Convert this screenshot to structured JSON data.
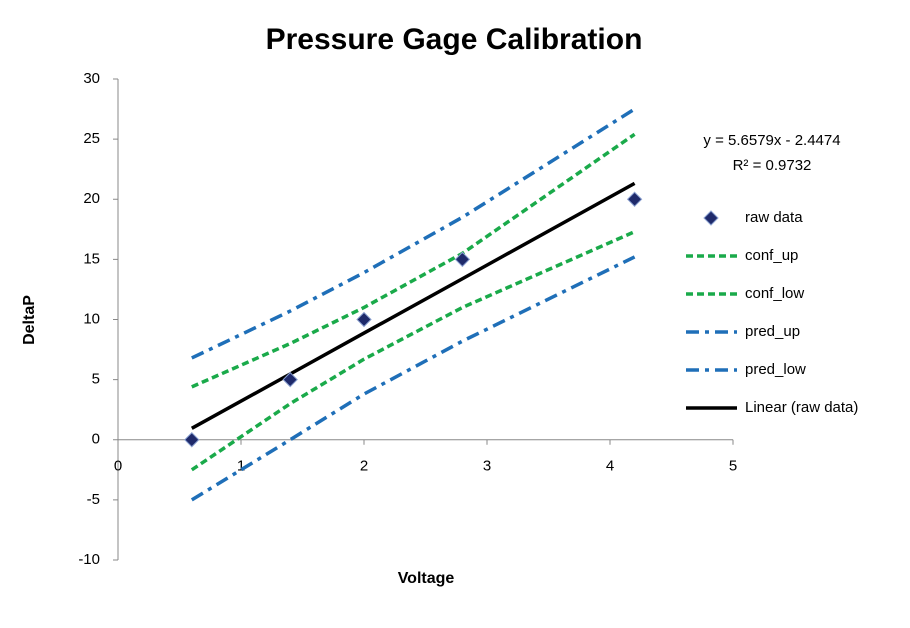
{
  "chart_data": {
    "type": "line",
    "title": "Pressure Gage Calibration",
    "x_label": "Voltage",
    "y_label": "DeltaP",
    "x": [
      0.6,
      1.4,
      2.0,
      2.8,
      4.2
    ],
    "series": [
      {
        "name": "raw data",
        "color": "#1f2a6b",
        "marker": "diamond",
        "values": [
          0,
          5,
          10,
          15,
          20
        ]
      },
      {
        "name": "conf_up",
        "color": "#1aaa4a",
        "dash": "dash",
        "values": [
          4.4,
          8.0,
          11.0,
          15.5,
          25.4
        ]
      },
      {
        "name": "conf_low",
        "color": "#1aaa4a",
        "dash": "dash",
        "values": [
          -2.5,
          3.0,
          6.7,
          11.0,
          17.3
        ]
      },
      {
        "name": "pred_up",
        "color": "#1f6fb8",
        "dash": "dashdot",
        "values": [
          6.8,
          10.7,
          13.9,
          18.5,
          27.5
        ]
      },
      {
        "name": "pred_low",
        "color": "#1f6fb8",
        "dash": "dashdot",
        "values": [
          -5.0,
          0.0,
          3.8,
          8.2,
          15.2
        ]
      },
      {
        "name": "Linear (raw data)",
        "color": "#000000",
        "dash": "solid",
        "values": [
          0.95,
          5.47,
          8.87,
          13.39,
          21.32
        ]
      }
    ],
    "annotations": [
      "y = 5.6579x - 2.4474",
      "R² = 0.9732"
    ],
    "xlim": [
      0,
      5
    ],
    "xticks": [
      0,
      1,
      2,
      3,
      4,
      5
    ],
    "ylim": [
      -10,
      30
    ],
    "yticks": [
      -10,
      -5,
      0,
      5,
      10,
      15,
      20,
      25,
      30
    ],
    "grid": false,
    "legend": "right"
  }
}
